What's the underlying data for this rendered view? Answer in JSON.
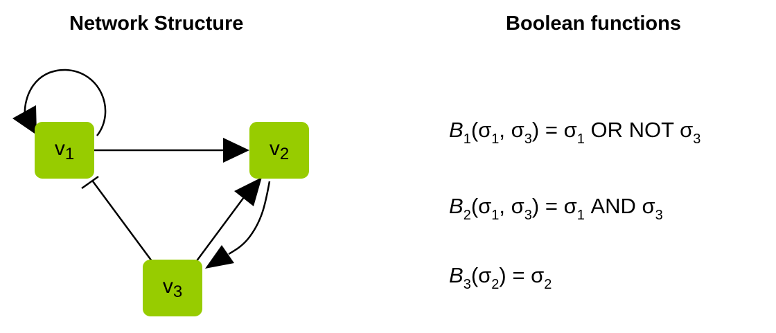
{
  "titles": {
    "network": "Network Structure",
    "functions": "Boolean functions"
  },
  "colors": {
    "node_fill": "#97CC00",
    "edge": "#000000"
  },
  "nodes": [
    {
      "base": "v",
      "index": "1"
    },
    {
      "base": "v",
      "index": "2"
    },
    {
      "base": "v",
      "index": "3"
    }
  ],
  "edges": [
    {
      "from": "v1",
      "to": "v1",
      "type": "activation"
    },
    {
      "from": "v1",
      "to": "v2",
      "type": "activation"
    },
    {
      "from": "v3",
      "to": "v2",
      "type": "activation"
    },
    {
      "from": "v2",
      "to": "v3",
      "type": "activation"
    },
    {
      "from": "v3",
      "to": "v1",
      "type": "inhibition"
    }
  ],
  "equations": [
    {
      "fn": "B",
      "fn_index": "1",
      "open": "(",
      "a": "σ",
      "a_index": "1",
      "sep": ", ",
      "b": "σ",
      "b_index": "3",
      "close": ")",
      "eq": " = ",
      "r1": "σ",
      "r1_index": "1",
      "op": " OR NOT ",
      "r2": "σ",
      "r2_index": "3"
    },
    {
      "fn": "B",
      "fn_index": "2",
      "open": "(",
      "a": "σ",
      "a_index": "1",
      "sep": ", ",
      "b": "σ",
      "b_index": "3",
      "close": ")",
      "eq": " = ",
      "r1": "σ",
      "r1_index": "1",
      "op": " AND ",
      "r2": "σ",
      "r2_index": "3"
    },
    {
      "fn": "B",
      "fn_index": "3",
      "open": "(",
      "a": "σ",
      "a_index": "2",
      "close": ")",
      "eq": " = ",
      "r1": "σ",
      "r1_index": "2"
    }
  ]
}
